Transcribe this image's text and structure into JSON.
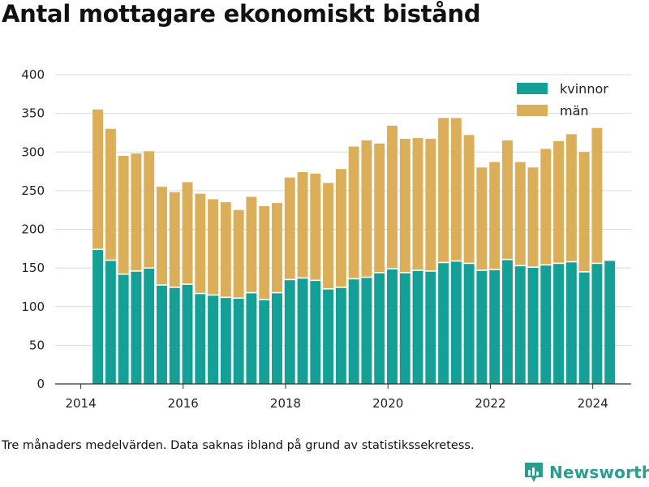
{
  "title": "Antal mottagare ekonomiskt bistånd",
  "footnote": "Tre månaders medelvärden. Data saknas ibland på grund av statistikssekretess.",
  "brand": {
    "name": "Newsworthy",
    "icon": "newsworthy-logo-icon"
  },
  "colors": {
    "kvinnor": "#14a096",
    "man": "#dbaf5a",
    "grid": "#d9d9d9",
    "axis": "#333333"
  },
  "chart_data": {
    "type": "bar",
    "stacked": true,
    "x_axis": {
      "min": 2013.5,
      "max": 2024.75,
      "ticks": [
        "2014",
        "2016",
        "2018",
        "2020",
        "2022",
        "2024"
      ]
    },
    "y_axis": {
      "min": 0,
      "max": 400,
      "ticks": [
        0,
        50,
        100,
        150,
        200,
        250,
        300,
        350,
        400
      ]
    },
    "grid": true,
    "legend_position": "top-right",
    "x": [
      "2014-05",
      "2014-08",
      "2014-11",
      "2015-02",
      "2015-05",
      "2015-08",
      "2015-11",
      "2016-02",
      "2016-05",
      "2016-08",
      "2016-11",
      "2017-02",
      "2017-05",
      "2017-08",
      "2017-11",
      "2018-02",
      "2018-05",
      "2018-08",
      "2018-11",
      "2019-02",
      "2019-05",
      "2019-08",
      "2019-11",
      "2020-02",
      "2020-05",
      "2020-08",
      "2020-11",
      "2021-02",
      "2021-05",
      "2021-08",
      "2021-11",
      "2022-02",
      "2022-05",
      "2022-08",
      "2022-11",
      "2023-02",
      "2023-05",
      "2023-08",
      "2023-11",
      "2024-02",
      "2024-05"
    ],
    "series": [
      {
        "name": "kvinnor",
        "values": [
          174,
          160,
          142,
          146,
          150,
          128,
          125,
          129,
          117,
          115,
          112,
          111,
          118,
          109,
          118,
          135,
          137,
          134,
          123,
          125,
          136,
          138,
          144,
          149,
          144,
          147,
          146,
          157,
          159,
          156,
          147,
          148,
          161,
          153,
          151,
          154,
          156,
          158,
          145,
          156,
          160
        ]
      },
      {
        "name": "män",
        "values": [
          181,
          170,
          153,
          152,
          151,
          127,
          123,
          132,
          129,
          124,
          123,
          114,
          124,
          121,
          116,
          132,
          137,
          138,
          137,
          153,
          171,
          177,
          167,
          185,
          173,
          171,
          171,
          187,
          185,
          166,
          133,
          139,
          154,
          134,
          129,
          150,
          158,
          165,
          155,
          175,
          0
        ]
      }
    ]
  }
}
